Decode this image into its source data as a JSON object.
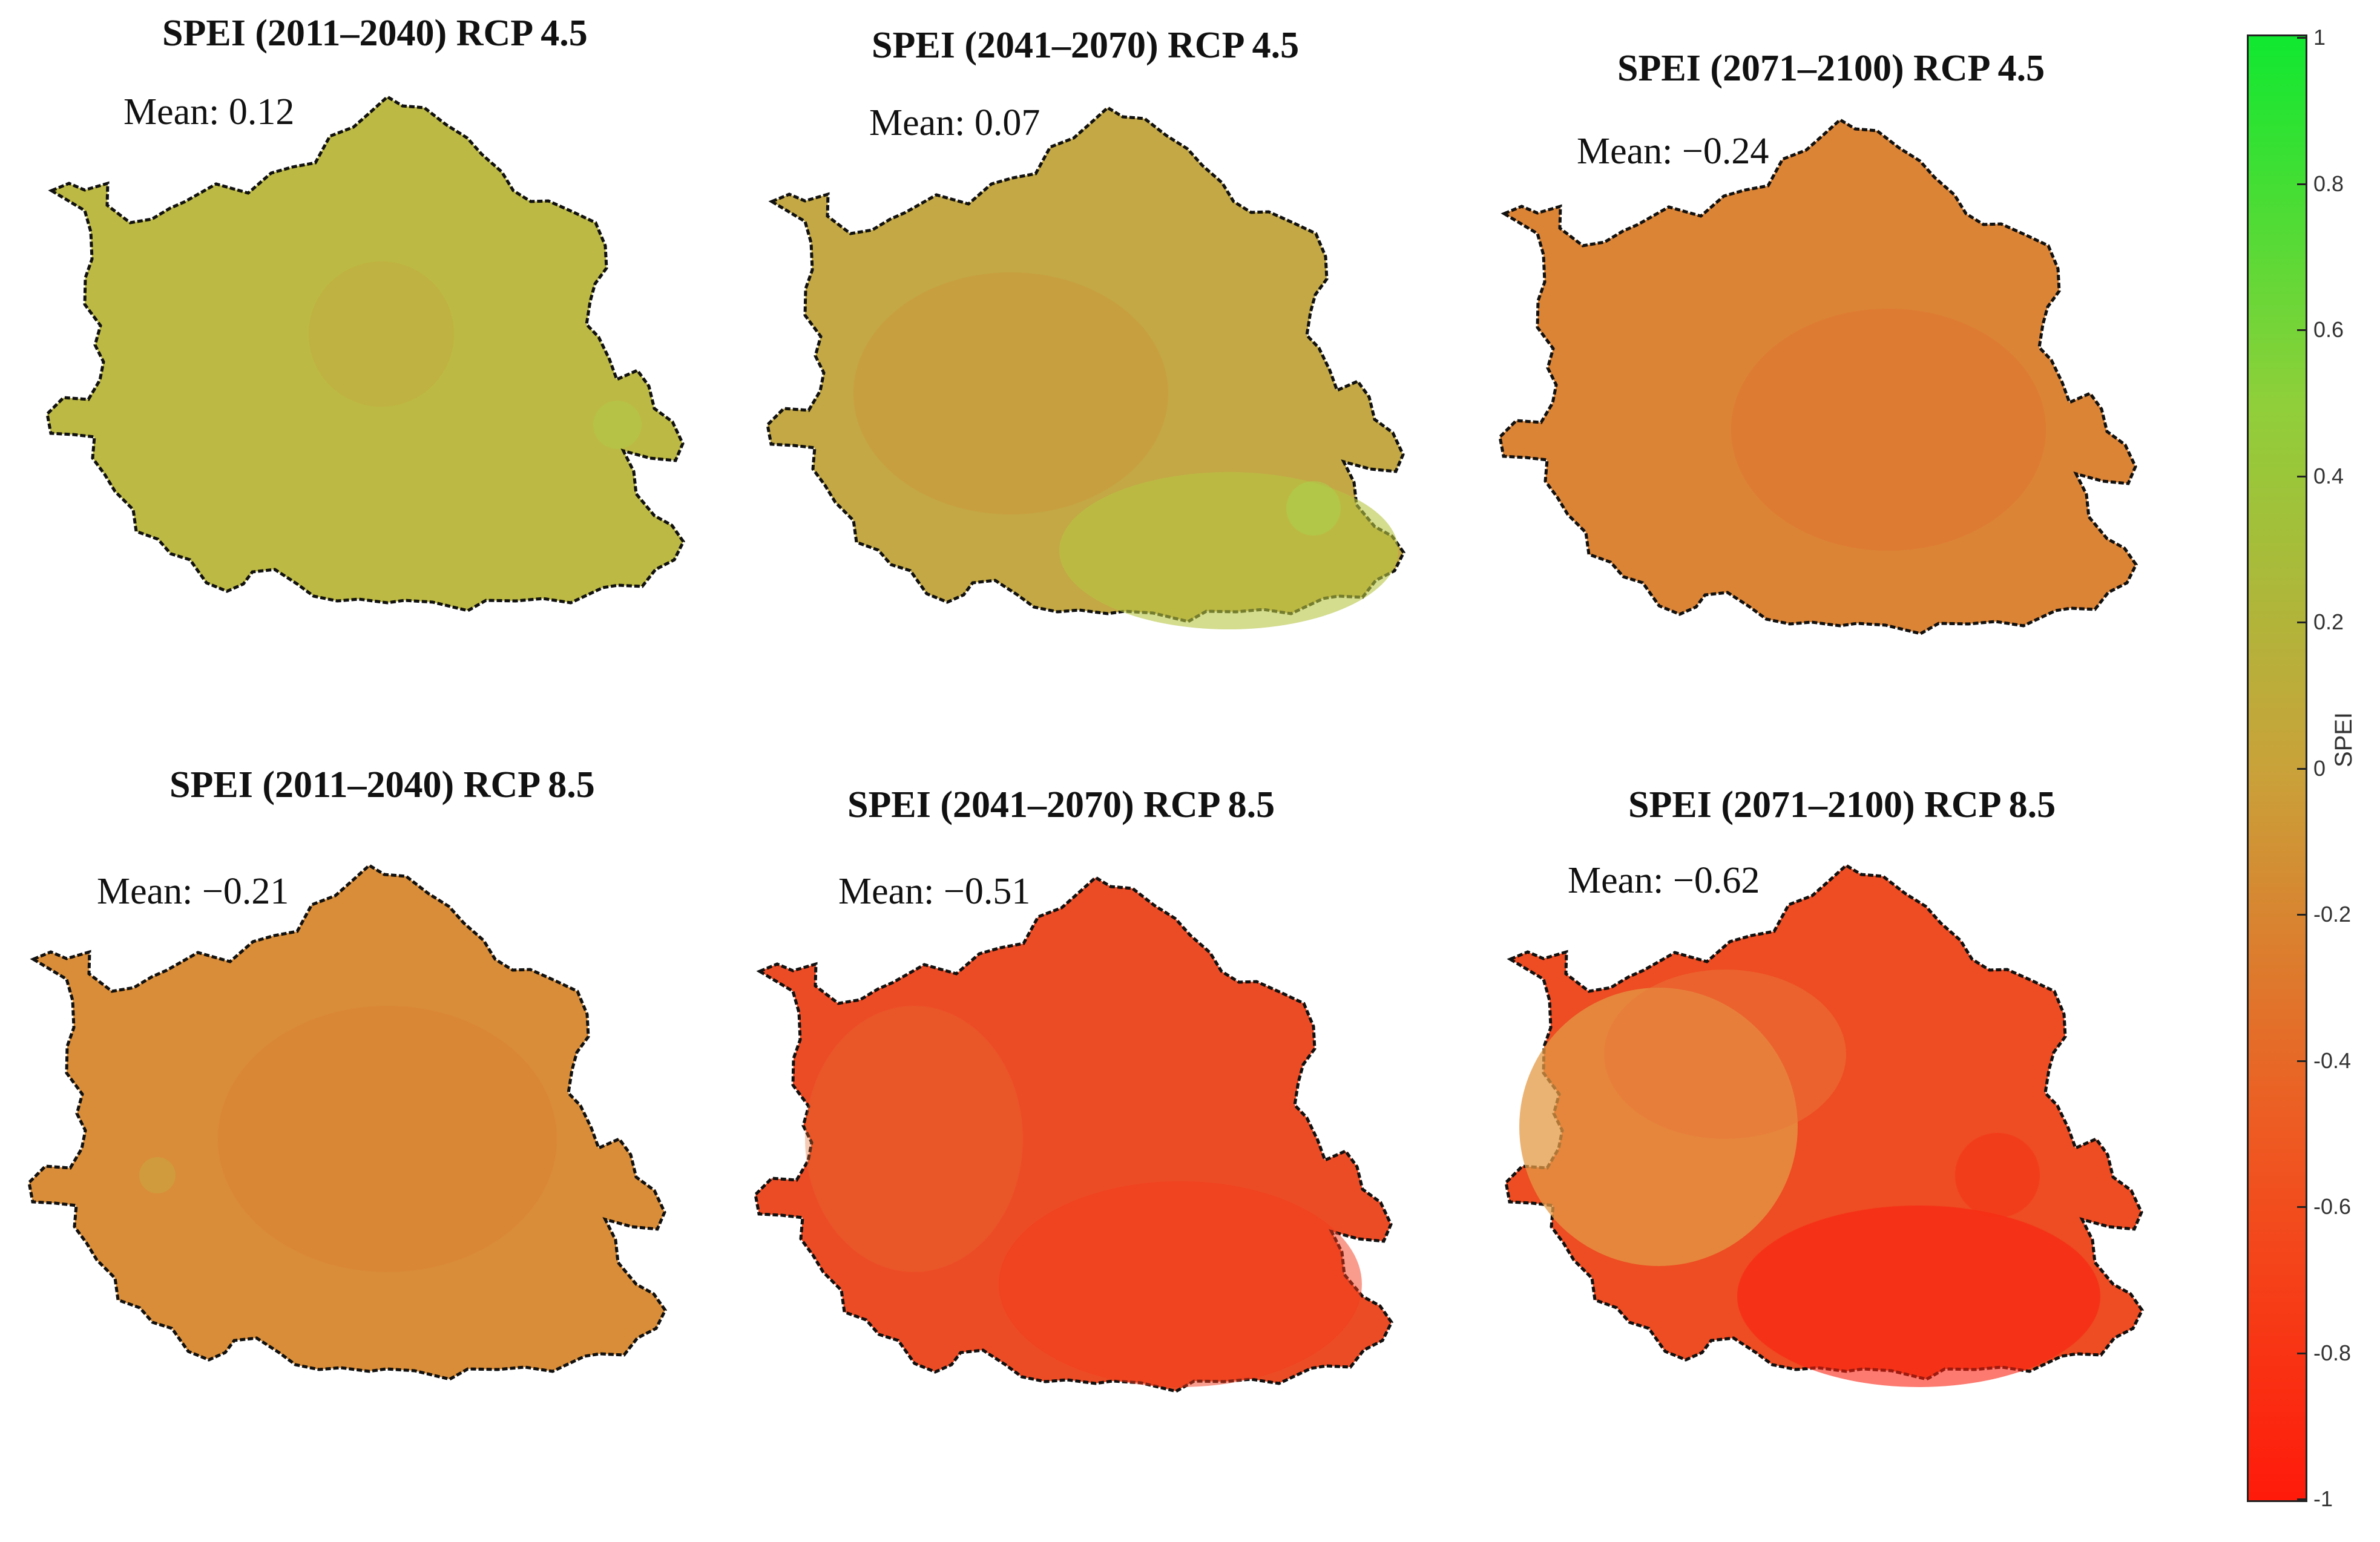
{
  "panels": [
    {
      "title": "SPEI (2011–2040) RCP 4.5",
      "mean_label": "Mean: 0.12",
      "mean": 0.12
    },
    {
      "title": "SPEI (2041–2070) RCP 4.5",
      "mean_label": "Mean: 0.07",
      "mean": 0.07
    },
    {
      "title": "SPEI (2071–2100) RCP 4.5",
      "mean_label": "Mean: −0.24",
      "mean": -0.24
    },
    {
      "title": "SPEI (2011–2040) RCP 8.5",
      "mean_label": "Mean: −0.21",
      "mean": -0.21
    },
    {
      "title": "SPEI (2041–2070) RCP 8.5",
      "mean_label": "Mean: −0.51",
      "mean": -0.51
    },
    {
      "title": "SPEI (2071–2100) RCP 8.5",
      "mean_label": "Mean: −0.62",
      "mean": -0.62
    }
  ],
  "colorbar": {
    "label": "SPEI",
    "min": -1,
    "max": 1,
    "ticks": [
      "1",
      "0.8",
      "0.6",
      "0.4",
      "0.2",
      "0",
      "-0.2",
      "-0.4",
      "-0.6",
      "-0.8",
      "-1"
    ],
    "color_low": "#ff1a0a",
    "color_mid": "#c9a23a",
    "color_high": "#10e830"
  }
}
